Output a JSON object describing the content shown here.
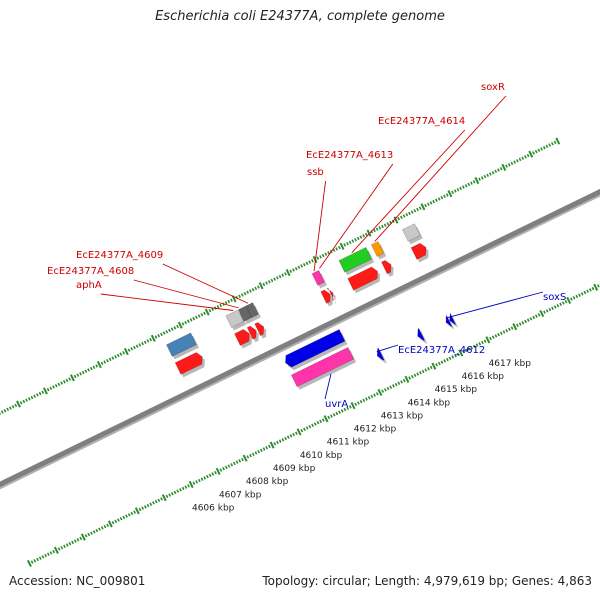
{
  "title": "Escherichia coli E24377A, complete genome",
  "footer": {
    "accession": "Accession: NC_009801",
    "summary": "Topology: circular; Length: 4,979,619 bp; Genes: 4,863"
  },
  "colors": {
    "backbone": "#7f7f7f",
    "tick": "#2e8b2e",
    "label_forward": "#cc0000",
    "label_reverse": "#0000bb",
    "cds": "#ff1a1a",
    "blue_gene": "#0000e6",
    "pink_gene": "#ff33aa",
    "green_gene": "#22cc22",
    "orange_gene": "#ff9900",
    "gray_gene": "#c8c8c8",
    "darkgray_gene": "#666666",
    "steel_gene": "#4682b4"
  },
  "chart_data": {
    "type": "genome-map",
    "unit": "kbp",
    "scale_labels": [
      {
        "kbp": 4606,
        "label": "4606 kbp"
      },
      {
        "kbp": 4607,
        "label": "4607 kbp"
      },
      {
        "kbp": 4608,
        "label": "4608 kbp"
      },
      {
        "kbp": 4609,
        "label": "4609 kbp"
      },
      {
        "kbp": 4610,
        "label": "4610 kbp"
      },
      {
        "kbp": 4611,
        "label": "4611 kbp"
      },
      {
        "kbp": 4612,
        "label": "4612 kbp"
      },
      {
        "kbp": 4613,
        "label": "4613 kbp"
      },
      {
        "kbp": 4614,
        "label": "4614 kbp"
      },
      {
        "kbp": 4615,
        "label": "4615 kbp"
      },
      {
        "kbp": 4616,
        "label": "4616 kbp"
      },
      {
        "kbp": 4617,
        "label": "4617 kbp"
      }
    ],
    "forward_features": [
      {
        "kind": "gene",
        "color": "steel_gene",
        "start": 4607.3,
        "end": 4608.2
      },
      {
        "kind": "cds",
        "start": 4607.3,
        "end": 4608.2
      },
      {
        "kind": "gene",
        "color": "gray_gene",
        "start": 4609.5,
        "end": 4609.95
      },
      {
        "kind": "cds",
        "start": 4609.5,
        "end": 4609.95
      },
      {
        "kind": "gene",
        "color": "darkgray_gene",
        "start": 4609.97,
        "end": 4610.25
      },
      {
        "kind": "gene",
        "color": "darkgray_gene",
        "start": 4610.25,
        "end": 4610.5
      },
      {
        "kind": "cds",
        "start": 4609.97,
        "end": 4610.2
      },
      {
        "kind": "cds",
        "start": 4610.25,
        "end": 4610.48
      },
      {
        "kind": "gene",
        "color": "pink_gene",
        "start": 4612.7,
        "end": 4612.95
      },
      {
        "kind": "cds",
        "start": 4612.7,
        "end": 4612.95
      },
      {
        "kind": "cds",
        "start": 4612.97,
        "end": 4613.05
      },
      {
        "kind": "gene",
        "color": "green_gene",
        "start": 4613.7,
        "end": 4614.7
      },
      {
        "kind": "cds",
        "start": 4613.7,
        "end": 4614.7
      },
      {
        "kind": "gene",
        "color": "orange_gene",
        "start": 4614.9,
        "end": 4615.15
      },
      {
        "kind": "cds",
        "start": 4614.95,
        "end": 4615.2
      },
      {
        "kind": "gene",
        "color": "gray_gene",
        "start": 4616.05,
        "end": 4616.5
      },
      {
        "kind": "cds",
        "start": 4616.05,
        "end": 4616.5
      }
    ],
    "reverse_features": [
      {
        "kind": "gene",
        "color": "blue_gene",
        "start": 4610.6,
        "end": 4612.7
      },
      {
        "kind": "gene",
        "color": "pink_gene",
        "start": 4610.6,
        "end": 4612.7
      },
      {
        "kind": "gene",
        "color": "blue_gene",
        "start": 4613.45,
        "end": 4613.6
      },
      {
        "kind": "gene",
        "color": "blue_gene",
        "start": 4614.95,
        "end": 4615.1
      },
      {
        "kind": "gene",
        "color": "blue_gene",
        "start": 4616.0,
        "end": 4616.12
      },
      {
        "kind": "gene",
        "color": "blue_gene",
        "start": 4616.14,
        "end": 4616.26
      }
    ],
    "gene_labels": [
      {
        "text": "aphA",
        "strand": "forward",
        "kbp": 4609.8
      },
      {
        "text": "EcE24377A_4608",
        "strand": "forward",
        "kbp": 4610.0
      },
      {
        "text": "EcE24377A_4609",
        "strand": "forward",
        "kbp": 4610.35
      },
      {
        "text": "ssb",
        "strand": "forward",
        "kbp": 4612.8
      },
      {
        "text": "EcE24377A_4613",
        "strand": "forward",
        "kbp": 4613.0
      },
      {
        "text": "EcE24377A_4614",
        "strand": "forward",
        "kbp": 4614.2
      },
      {
        "text": "soxR",
        "strand": "forward",
        "kbp": 4615.05
      },
      {
        "text": "uvrA",
        "strand": "reverse",
        "kbp": 4611.8
      },
      {
        "text": "EcE24377A_4612",
        "strand": "reverse",
        "kbp": 4613.5
      },
      {
        "text": "soxS",
        "strand": "reverse",
        "kbp": 4616.06
      }
    ]
  }
}
